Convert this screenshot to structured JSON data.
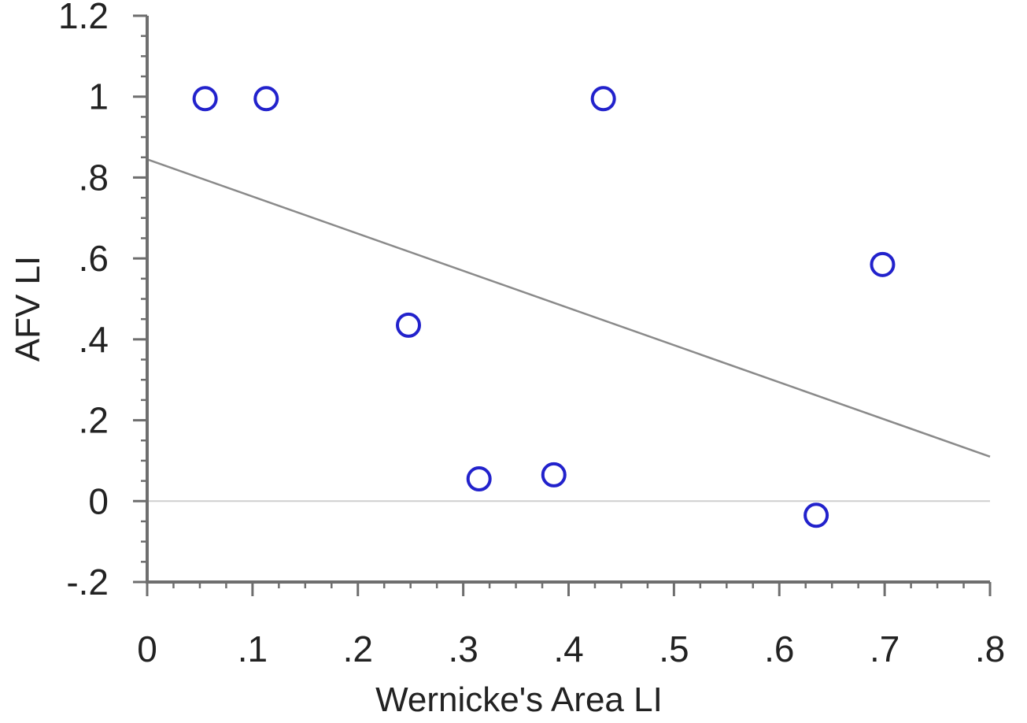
{
  "chart_data": {
    "type": "scatter",
    "xlabel": "Wernicke's Area LI",
    "ylabel": "AFV LI",
    "xlim": [
      0,
      0.8
    ],
    "ylim": [
      -0.2,
      1.2
    ],
    "x_ticks": [
      {
        "value": 0,
        "label": "0"
      },
      {
        "value": 0.1,
        "label": ".1"
      },
      {
        "value": 0.2,
        "label": ".2"
      },
      {
        "value": 0.3,
        "label": ".3"
      },
      {
        "value": 0.4,
        "label": ".4"
      },
      {
        "value": 0.5,
        "label": ".5"
      },
      {
        "value": 0.6,
        "label": ".6"
      },
      {
        "value": 0.7,
        "label": ".7"
      },
      {
        "value": 0.8,
        "label": ".8"
      }
    ],
    "y_ticks": [
      {
        "value": -0.2,
        "label": "-.2"
      },
      {
        "value": 0,
        "label": "0"
      },
      {
        "value": 0.2,
        "label": ".2"
      },
      {
        "value": 0.4,
        "label": ".4"
      },
      {
        "value": 0.6,
        "label": ".6"
      },
      {
        "value": 0.8,
        "label": ".8"
      },
      {
        "value": 1.0,
        "label": "1"
      },
      {
        "value": 1.2,
        "label": "1.2"
      }
    ],
    "minor_x_step": 0.025,
    "minor_y_step": 0.05,
    "grid": false,
    "reference_line_y": 0,
    "points": [
      {
        "x": 0.055,
        "y": 0.995
      },
      {
        "x": 0.113,
        "y": 0.995
      },
      {
        "x": 0.248,
        "y": 0.435
      },
      {
        "x": 0.315,
        "y": 0.055
      },
      {
        "x": 0.386,
        "y": 0.065
      },
      {
        "x": 0.433,
        "y": 0.995
      },
      {
        "x": 0.635,
        "y": -0.035
      },
      {
        "x": 0.698,
        "y": 0.585
      }
    ],
    "fit_line": {
      "x": [
        0,
        0.8
      ],
      "y": [
        0.845,
        0.11
      ]
    },
    "colors": {
      "points": "#2222cc",
      "fit_line": "#8a8a8a",
      "axis": "#6e6e6e",
      "reference_line": "#cfcfcf"
    }
  }
}
